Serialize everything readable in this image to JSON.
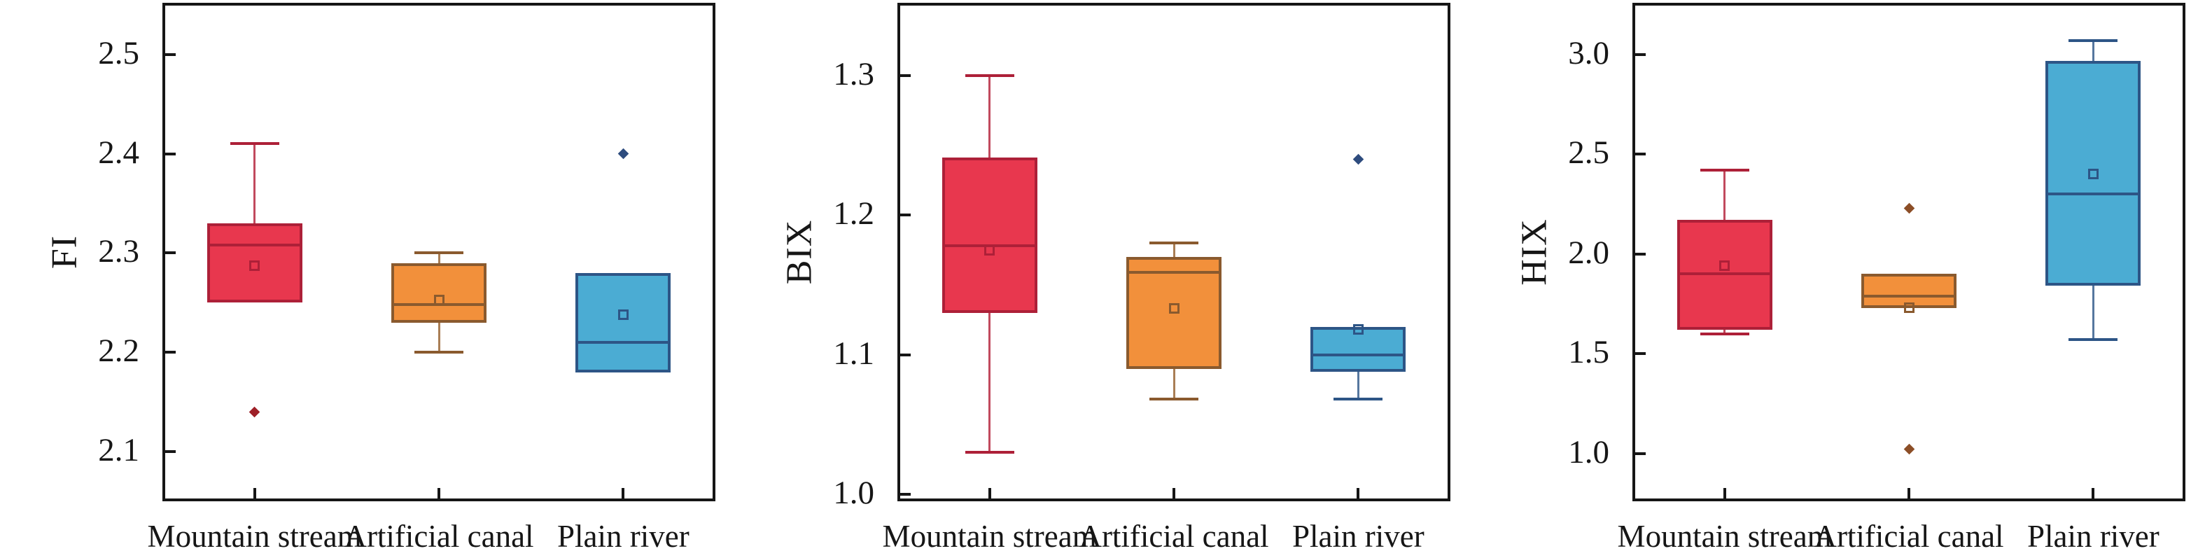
{
  "style": {
    "background": "#ffffff",
    "axis_color": "#161616",
    "text_color": "#161616"
  },
  "palette": [
    {
      "group": "Mountain stream",
      "fill": "#E8374E",
      "stroke": "#AD2038",
      "whisker": "#C14A5E",
      "outlier": "#9E2028"
    },
    {
      "group": "Artificial canal",
      "fill": "#F2903B",
      "stroke": "#8A5A2E",
      "whisker": "#A97E55",
      "outlier": "#8C4E27"
    },
    {
      "group": "Plain river",
      "fill": "#4BACD3",
      "stroke": "#2D5586",
      "whisker": "#56779F",
      "outlier": "#2E4C7E"
    }
  ],
  "chart_data": [
    {
      "type": "box",
      "ylabel": "FI",
      "categories": [
        "Mountain stream",
        "Artificial canal",
        "Plain river"
      ],
      "ylim": [
        2.05,
        2.552
      ],
      "yticks": [
        2.1,
        2.2,
        2.3,
        2.4,
        2.5
      ],
      "ytick_labels": [
        "2.1",
        "2.2",
        "2.3",
        "2.4",
        "2.5"
      ],
      "grid": false,
      "legend": "none",
      "series": [
        {
          "name": "Mountain stream",
          "whisker_low": null,
          "q1": 2.25,
          "median": 2.308,
          "q3": 2.33,
          "mean": 2.287,
          "whisker_high": 2.41,
          "outliers": [
            2.14
          ]
        },
        {
          "name": "Artificial canal",
          "whisker_low": 2.2,
          "q1": 2.23,
          "median": 2.248,
          "q3": 2.29,
          "mean": 2.253,
          "whisker_high": 2.3,
          "outliers": []
        },
        {
          "name": "Plain river",
          "whisker_low": null,
          "q1": 2.18,
          "median": 2.21,
          "q3": 2.28,
          "mean": 2.238,
          "whisker_high": null,
          "outliers": [
            2.4
          ]
        }
      ]
    },
    {
      "type": "box",
      "ylabel": "BIX",
      "categories": [
        "Mountain stream",
        "Artificial canal",
        "Plain river"
      ],
      "ylim": [
        0.995,
        1.352
      ],
      "yticks": [
        1.0,
        1.1,
        1.2,
        1.3
      ],
      "ytick_labels": [
        "1.0",
        "1.1",
        "1.2",
        "1.3"
      ],
      "grid": false,
      "legend": "none",
      "series": [
        {
          "name": "Mountain stream",
          "whisker_low": 1.03,
          "q1": 1.13,
          "median": 1.178,
          "q3": 1.241,
          "mean": 1.175,
          "whisker_high": 1.3,
          "outliers": []
        },
        {
          "name": "Artificial canal",
          "whisker_low": 1.068,
          "q1": 1.09,
          "median": 1.159,
          "q3": 1.17,
          "mean": 1.133,
          "whisker_high": 1.18,
          "outliers": []
        },
        {
          "name": "Plain river",
          "whisker_low": 1.068,
          "q1": 1.088,
          "median": 1.1,
          "q3": 1.12,
          "mean": 1.118,
          "whisker_high": null,
          "outliers": [
            1.24
          ]
        }
      ]
    },
    {
      "type": "box",
      "ylabel": "HIX",
      "categories": [
        "Mountain stream",
        "Artificial canal",
        "Plain river"
      ],
      "ylim": [
        0.76,
        3.26
      ],
      "yticks": [
        1.0,
        1.5,
        2.0,
        2.5,
        3.0
      ],
      "ytick_labels": [
        "1.0",
        "1.5",
        "2.0",
        "2.5",
        "3.0"
      ],
      "grid": false,
      "legend": "none",
      "series": [
        {
          "name": "Mountain stream",
          "whisker_low": 1.6,
          "q1": 1.62,
          "median": 1.9,
          "q3": 2.17,
          "mean": 1.94,
          "whisker_high": 2.42,
          "outliers": []
        },
        {
          "name": "Artificial canal",
          "whisker_low": null,
          "q1": 1.73,
          "median": 1.79,
          "q3": 1.9,
          "mean": 1.73,
          "whisker_high": null,
          "outliers": [
            2.23,
            1.02
          ]
        },
        {
          "name": "Plain river",
          "whisker_low": 1.57,
          "q1": 1.84,
          "median": 2.3,
          "q3": 2.97,
          "mean": 2.4,
          "whisker_high": 3.07,
          "outliers": []
        }
      ]
    }
  ]
}
